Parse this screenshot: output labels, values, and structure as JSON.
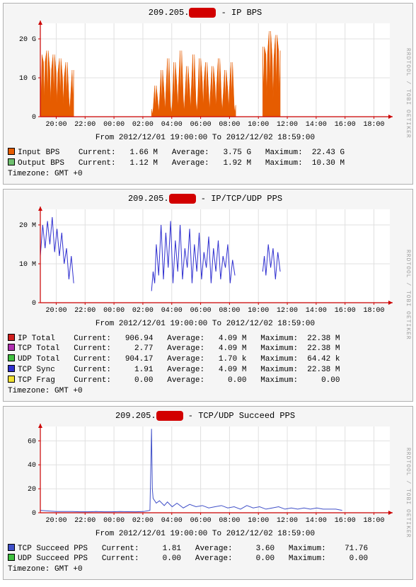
{
  "global": {
    "ip_prefix": "209.205.",
    "redacted": "7xxxx",
    "time_range_caption": "From 2012/12/01 19:00:00 To 2012/12/02 18:59:00",
    "timezone": "Timezone: GMT +0",
    "watermark": "RRDTOOL / TOBI OETIKER",
    "font_family": "Courier New",
    "panel_bg": "#f5f5f5",
    "panel_border": "#b0b0b0",
    "plot_bg": "#ffffff",
    "axis_color": "#cc0000",
    "grid_color": "#e0e0e0",
    "text_color": "#000000",
    "x_ticks": [
      "20:00",
      "22:00",
      "00:00",
      "02:00",
      "04:00",
      "06:00",
      "08:00",
      "10:00",
      "12:00",
      "14:00",
      "16:00",
      "18:00"
    ]
  },
  "chart1": {
    "title_suffix": " - IP BPS",
    "type": "area",
    "y_unit": "G",
    "y_ticks": [
      0,
      10,
      20
    ],
    "ylim": [
      0,
      24
    ],
    "series": {
      "input_bps": {
        "color": "#e65c00",
        "x": [
          0,
          0.2,
          0.4,
          0.6,
          0.8,
          1,
          1.2,
          1.4,
          1.6,
          1.8,
          2,
          2.2,
          6.8,
          7,
          7.2,
          7.4,
          7.6,
          7.8,
          8,
          8.2,
          8.4,
          8.6,
          8.8,
          9,
          9.2,
          9.4,
          9.6,
          9.8,
          10,
          10.2,
          10.4,
          10.6,
          10.8,
          11,
          11.2,
          11.4,
          11.6,
          11.8,
          12,
          12.2,
          12.4,
          13.8,
          14,
          14.2,
          14.4,
          14.6,
          14.8,
          15,
          15.2
        ],
        "y": [
          16,
          14,
          17,
          12,
          16,
          11,
          15,
          10,
          14,
          5,
          12,
          0,
          0,
          2,
          8,
          4,
          12,
          6,
          15,
          3,
          14,
          8,
          17,
          5,
          13,
          7,
          16,
          4,
          15,
          9,
          14,
          6,
          13,
          8,
          15,
          5,
          12,
          7,
          14,
          3,
          0,
          0,
          18,
          16,
          22,
          15,
          21,
          17,
          0
        ]
      }
    },
    "legend": [
      {
        "swatch": "#e65c00",
        "label": "Input BPS",
        "current": "1.66 M",
        "average": "3.75 G",
        "maximum": "22.43 G"
      },
      {
        "swatch": "#6fbf6f",
        "label": "Output BPS",
        "current": "1.12 M",
        "average": "1.92 M",
        "maximum": "10.30 M"
      }
    ]
  },
  "chart2": {
    "title_suffix": " - IP/TCP/UDP PPS",
    "type": "line",
    "y_unit": "M",
    "y_ticks": [
      0,
      10,
      20
    ],
    "ylim": [
      0,
      24
    ],
    "series": {
      "tcp_sync": {
        "color": "#3030d0",
        "x": [
          0,
          0.15,
          0.3,
          0.45,
          0.6,
          0.75,
          0.9,
          1.05,
          1.2,
          1.35,
          1.5,
          1.65,
          1.8,
          1.95,
          2.1,
          2.25,
          6.9,
          7,
          7.1,
          7.2,
          7.3,
          7.45,
          7.6,
          7.75,
          7.9,
          8.05,
          8.2,
          8.35,
          8.5,
          8.65,
          8.8,
          8.95,
          9.1,
          9.25,
          9.4,
          9.55,
          9.7,
          9.85,
          10,
          10.15,
          10.3,
          10.45,
          10.6,
          10.75,
          10.9,
          11.05,
          11.2,
          11.35,
          11.5,
          11.65,
          11.8,
          11.95,
          12.1,
          12.25,
          12.4,
          12.55,
          13.9,
          14,
          14.1,
          14.2,
          14.35,
          14.5,
          14.65,
          14.8,
          14.95,
          15.1,
          15.25
        ],
        "y": [
          12,
          20,
          14,
          21,
          15,
          22,
          13,
          19,
          12,
          18,
          10,
          14,
          6,
          12,
          5,
          0,
          0,
          3,
          8,
          5,
          15,
          7,
          20,
          6,
          18,
          9,
          21,
          5,
          16,
          8,
          20,
          6,
          14,
          9,
          19,
          5,
          15,
          8,
          18,
          6,
          13,
          9,
          17,
          5,
          14,
          8,
          16,
          6,
          12,
          9,
          15,
          5,
          11,
          7,
          0,
          0,
          0,
          8,
          12,
          7,
          15,
          9,
          14,
          6,
          13,
          8,
          0
        ]
      }
    },
    "legend": [
      {
        "swatch": "#d02020",
        "label": "IP Total",
        "current": "906.94",
        "average": "4.09 M",
        "maximum": "22.38 M"
      },
      {
        "swatch": "#b030b0",
        "label": "TCP Total",
        "current": "2.77",
        "average": "4.09 M",
        "maximum": "22.38 M"
      },
      {
        "swatch": "#40c040",
        "label": "UDP Total",
        "current": "904.17",
        "average": "1.70 k",
        "maximum": "64.42 k"
      },
      {
        "swatch": "#3030d0",
        "label": "TCP Sync",
        "current": "1.91",
        "average": "4.09 M",
        "maximum": "22.38 M"
      },
      {
        "swatch": "#f0e030",
        "label": "TCP Frag",
        "current": "0.00",
        "average": "0.00",
        "maximum": "0.00"
      }
    ]
  },
  "chart3": {
    "title_suffix": " - TCP/UDP Succeed PPS",
    "type": "line",
    "y_unit": "",
    "y_ticks": [
      0,
      20,
      40,
      60
    ],
    "ylim": [
      0,
      72
    ],
    "series": {
      "tcp_succeed": {
        "color": "#4050c8",
        "x": [
          0,
          0.5,
          1,
          1.5,
          2,
          2.5,
          3,
          3.5,
          4,
          4.5,
          5,
          5.5,
          6,
          6.5,
          6.9,
          7,
          7.05,
          7.1,
          7.3,
          7.5,
          7.8,
          8,
          8.3,
          8.6,
          9,
          9.4,
          9.8,
          10.2,
          10.6,
          11,
          11.4,
          11.8,
          12.2,
          12.6,
          13,
          13.4,
          13.8,
          14.2,
          14.6,
          15,
          15.4,
          15.8,
          16.2,
          16.6,
          17,
          17.4,
          17.8,
          18.2,
          18.6,
          19
        ],
        "y": [
          2,
          1.5,
          1,
          1,
          1,
          0.8,
          0.8,
          1,
          0.8,
          0.8,
          1,
          0.9,
          0.8,
          1,
          2,
          70,
          20,
          12,
          8,
          10,
          6,
          9,
          5,
          8,
          4,
          7,
          5,
          6,
          4,
          5,
          6,
          4,
          5,
          3,
          6,
          4,
          5,
          3,
          4,
          5,
          3,
          4,
          3,
          4,
          3,
          4,
          3,
          3,
          3,
          2
        ]
      }
    },
    "legend": [
      {
        "swatch": "#4050c8",
        "label": "TCP Succeed PPS",
        "current": "1.81",
        "average": "3.60",
        "maximum": "71.76"
      },
      {
        "swatch": "#40c040",
        "label": "UDP Succeed PPS",
        "current": "0.00",
        "average": "0.00",
        "maximum": "0.00"
      }
    ]
  }
}
